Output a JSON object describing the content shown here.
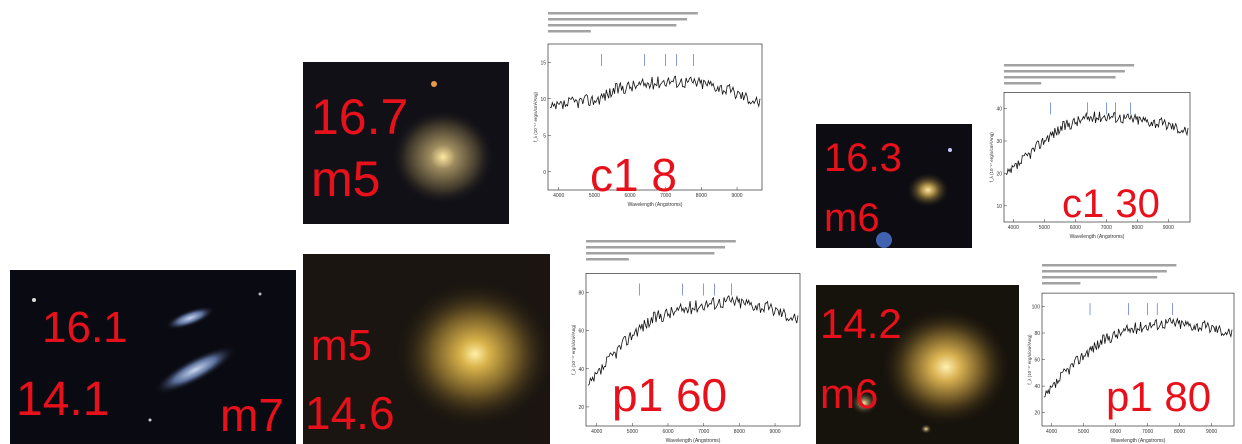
{
  "colors": {
    "label": "#e8101a",
    "sky": "#0b0b12",
    "galaxy": "#d4b04a"
  },
  "galaxy_images": [
    {
      "id": "g1",
      "labels": [
        "16.7",
        "m5"
      ]
    },
    {
      "id": "g2",
      "labels": [
        "16.3",
        "m6"
      ]
    },
    {
      "id": "g3",
      "labels": [
        "16.1",
        "14.1",
        "m7"
      ]
    },
    {
      "id": "g4",
      "labels": [
        "m5",
        "14.6"
      ]
    },
    {
      "id": "g5",
      "labels": [
        "14.2",
        "m6"
      ]
    }
  ],
  "spectra": [
    {
      "id": "s1",
      "tag": "c1 8",
      "y_ticks": [
        "15",
        "10",
        "5",
        "0"
      ],
      "x_ticks": [
        "4000",
        "5000",
        "6000",
        "7000",
        "8000",
        "9000"
      ],
      "xlabel": "Wavelength (Angstroms)",
      "ylabel": "f_λ (10⁻¹⁷ erg/s/cm²/Ang)",
      "shape": [
        0.55,
        0.6,
        0.62,
        0.7,
        0.72,
        0.75,
        0.74,
        0.72,
        0.66,
        0.6
      ]
    },
    {
      "id": "s2",
      "tag": "c1 30",
      "y_ticks": [
        "40",
        "30",
        "20",
        "10"
      ],
      "x_ticks": [
        "4000",
        "5000",
        "6000",
        "7000",
        "8000",
        "9000"
      ],
      "xlabel": "Wavelength (Angstroms)",
      "ylabel": "f_λ (10⁻¹⁷ erg/s/cm²/Ang)",
      "shape": [
        0.35,
        0.5,
        0.65,
        0.75,
        0.8,
        0.82,
        0.8,
        0.78,
        0.75,
        0.7
      ]
    },
    {
      "id": "s3",
      "tag": "p1 60",
      "y_ticks": [
        "80",
        "60",
        "40",
        "20"
      ],
      "x_ticks": [
        "4000",
        "5000",
        "6000",
        "7000",
        "8000",
        "9000"
      ],
      "xlabel": "Wavelength (Angstroms)",
      "ylabel": "f_λ (10⁻¹⁷ erg/s/cm²/Ang)",
      "shape": [
        0.25,
        0.45,
        0.62,
        0.72,
        0.76,
        0.8,
        0.82,
        0.8,
        0.76,
        0.7
      ]
    },
    {
      "id": "s4",
      "tag": "p1 80",
      "y_ticks": [
        "100",
        "80",
        "60",
        "40",
        "20"
      ],
      "x_ticks": [
        "4000",
        "5000",
        "6000",
        "7000",
        "8000",
        "9000"
      ],
      "xlabel": "Wavelength (Angstroms)",
      "ylabel": "f_λ (10⁻¹⁷ erg/s/cm²/Ang)",
      "shape": [
        0.2,
        0.4,
        0.55,
        0.66,
        0.72,
        0.76,
        0.78,
        0.76,
        0.74,
        0.7
      ]
    }
  ]
}
